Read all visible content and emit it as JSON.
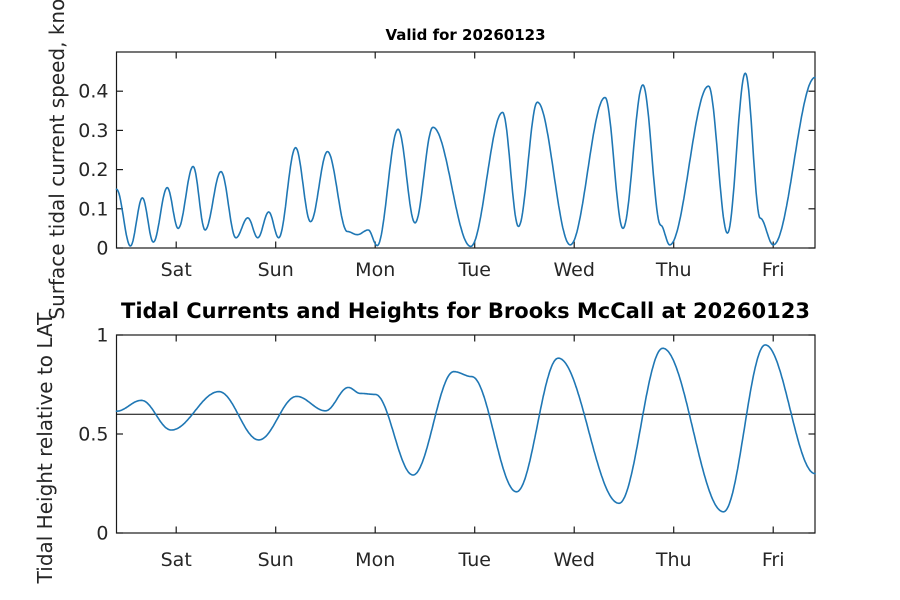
{
  "figure": {
    "background": "#ffffff",
    "kind": "two stacked tide plots, MATLAB-style box axes with inward ticks"
  },
  "colors": {
    "line": "#1f77b4",
    "axis": "#1a1a1a",
    "tick_text": "#262626",
    "title_text": "#000000",
    "reference_line": "#000000"
  },
  "chart_data": [
    {
      "id": "surface-current-speed",
      "type": "line",
      "title": "Valid for 20260123",
      "ylabel": "Surface tidal current speed, knots",
      "xlabel": "",
      "x_unit": "days",
      "xlim": [
        0,
        7.02
      ],
      "ylim": [
        0,
        0.5
      ],
      "xtick_values": [
        0.6,
        1.6,
        2.6,
        3.6,
        4.6,
        5.6,
        6.6
      ],
      "xtick_labels": [
        "Sat",
        "Sun",
        "Mon",
        "Tue",
        "Wed",
        "Thu",
        "Fri"
      ],
      "ytick_values": [
        0,
        0.1,
        0.2,
        0.3,
        0.4
      ],
      "ytick_labels": [
        "0",
        "0.1",
        "0.2",
        "0.3",
        "0.4"
      ],
      "grid": false,
      "legend": null,
      "line_color": "#1f77b4",
      "interpolation": "cosine-through-extrema",
      "keypoints": [
        [
          0.0,
          0.15
        ],
        [
          0.14,
          0.005
        ],
        [
          0.26,
          0.128
        ],
        [
          0.37,
          0.015
        ],
        [
          0.51,
          0.154
        ],
        [
          0.62,
          0.05
        ],
        [
          0.77,
          0.208
        ],
        [
          0.89,
          0.046
        ],
        [
          1.05,
          0.195
        ],
        [
          1.2,
          0.026
        ],
        [
          1.32,
          0.077
        ],
        [
          1.42,
          0.026
        ],
        [
          1.53,
          0.092
        ],
        [
          1.63,
          0.026
        ],
        [
          1.8,
          0.256
        ],
        [
          1.95,
          0.067
        ],
        [
          2.12,
          0.246
        ],
        [
          2.32,
          0.042
        ],
        [
          2.42,
          0.034
        ],
        [
          2.53,
          0.046
        ],
        [
          2.62,
          0.006
        ],
        [
          2.83,
          0.303
        ],
        [
          3.0,
          0.064
        ],
        [
          3.18,
          0.308
        ],
        [
          3.56,
          0.004
        ],
        [
          3.88,
          0.346
        ],
        [
          4.04,
          0.055
        ],
        [
          4.23,
          0.372
        ],
        [
          4.56,
          0.008
        ],
        [
          4.91,
          0.384
        ],
        [
          5.09,
          0.05
        ],
        [
          5.29,
          0.416
        ],
        [
          5.47,
          0.058
        ],
        [
          5.56,
          0.008
        ],
        [
          5.95,
          0.413
        ],
        [
          6.14,
          0.038
        ],
        [
          6.32,
          0.446
        ],
        [
          6.47,
          0.076
        ],
        [
          6.6,
          0.008
        ],
        [
          7.02,
          0.435
        ]
      ]
    },
    {
      "id": "tidal-height",
      "type": "line",
      "title": "Tidal Currents and Heights for Brooks McCall at 20260123",
      "ylabel": "Tidal Height relative to LAT",
      "xlabel": "",
      "x_unit": "days",
      "xlim": [
        0,
        7.02
      ],
      "ylim": [
        0,
        1
      ],
      "xtick_values": [
        0.6,
        1.6,
        2.6,
        3.6,
        4.6,
        5.6,
        6.6
      ],
      "xtick_labels": [
        "Sat",
        "Sun",
        "Mon",
        "Tue",
        "Wed",
        "Thu",
        "Fri"
      ],
      "ytick_values": [
        0,
        0.5,
        1
      ],
      "ytick_labels": [
        "0",
        "0.5",
        "1"
      ],
      "grid": false,
      "legend": null,
      "line_color": "#1f77b4",
      "ref_line_y": 0.6,
      "interpolation": "cosine-through-extrema",
      "keypoints": [
        [
          0.0,
          0.615
        ],
        [
          0.25,
          0.67
        ],
        [
          0.55,
          0.52
        ],
        [
          1.03,
          0.714
        ],
        [
          1.43,
          0.47
        ],
        [
          1.81,
          0.69
        ],
        [
          2.1,
          0.617
        ],
        [
          2.33,
          0.735
        ],
        [
          2.45,
          0.705
        ],
        [
          2.6,
          0.7
        ],
        [
          2.98,
          0.293
        ],
        [
          3.39,
          0.815
        ],
        [
          3.57,
          0.79
        ],
        [
          4.02,
          0.208
        ],
        [
          4.44,
          0.883
        ],
        [
          5.05,
          0.15
        ],
        [
          5.49,
          0.933
        ],
        [
          6.1,
          0.107
        ],
        [
          6.52,
          0.95
        ],
        [
          7.02,
          0.3
        ]
      ]
    }
  ]
}
